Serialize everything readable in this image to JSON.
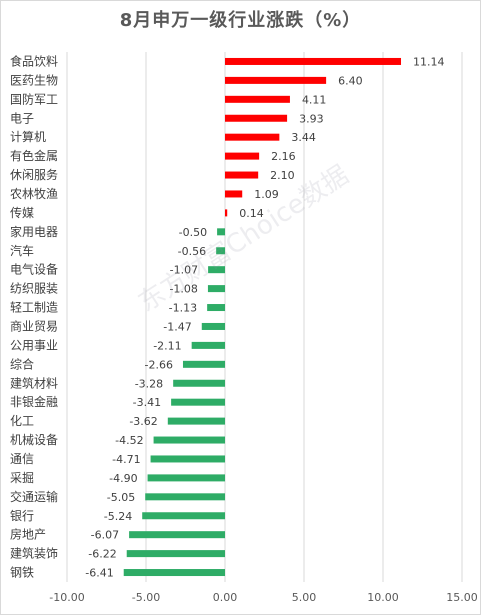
{
  "chart_data": {
    "type": "bar",
    "orientation": "horizontal",
    "title": "8月申万一级行业涨跌（%）",
    "categories": [
      "食品饮料",
      "医药生物",
      "国防军工",
      "电子",
      "计算机",
      "有色金属",
      "休闲服务",
      "农林牧渔",
      "传媒",
      "家用电器",
      "汽车",
      "电气设备",
      "纺织服装",
      "轻工制造",
      "商业贸易",
      "公用事业",
      "综合",
      "建筑材料",
      "非银金融",
      "化工",
      "机械设备",
      "通信",
      "采掘",
      "交通运输",
      "银行",
      "房地产",
      "建筑装饰",
      "钢铁"
    ],
    "values": [
      11.14,
      6.4,
      4.11,
      3.93,
      3.44,
      2.16,
      2.1,
      1.09,
      0.14,
      -0.5,
      -0.56,
      -1.07,
      -1.08,
      -1.13,
      -1.47,
      -2.11,
      -2.66,
      -3.28,
      -3.41,
      -3.62,
      -4.52,
      -4.71,
      -4.9,
      -5.05,
      -5.24,
      -6.07,
      -6.22,
      -6.41
    ],
    "value_labels": [
      "11.14",
      "6.40",
      "4.11",
      "3.93",
      "3.44",
      "2.16",
      "2.10",
      "1.09",
      "0.14",
      "-0.50",
      "-0.56",
      "-1.07",
      "-1.08",
      "-1.13",
      "-1.47",
      "-2.11",
      "-2.66",
      "-3.28",
      "-3.41",
      "-3.62",
      "-4.52",
      "-4.71",
      "-4.90",
      "-5.05",
      "-5.24",
      "-6.07",
      "-6.22",
      "-6.41"
    ],
    "xlim": [
      -10,
      15
    ],
    "xticks": [
      "-10.00",
      "-5.00",
      "0.00",
      "5.00",
      "10.00",
      "15.00"
    ],
    "xtick_values": [
      -10,
      -5,
      0,
      5,
      10,
      15
    ],
    "grid": "vertical",
    "colors": {
      "positive": "#ff0000",
      "negative": "#2eac66",
      "grid": "#d9d9d9",
      "text": "#404040"
    }
  },
  "watermark": "东方财富Choice数据"
}
